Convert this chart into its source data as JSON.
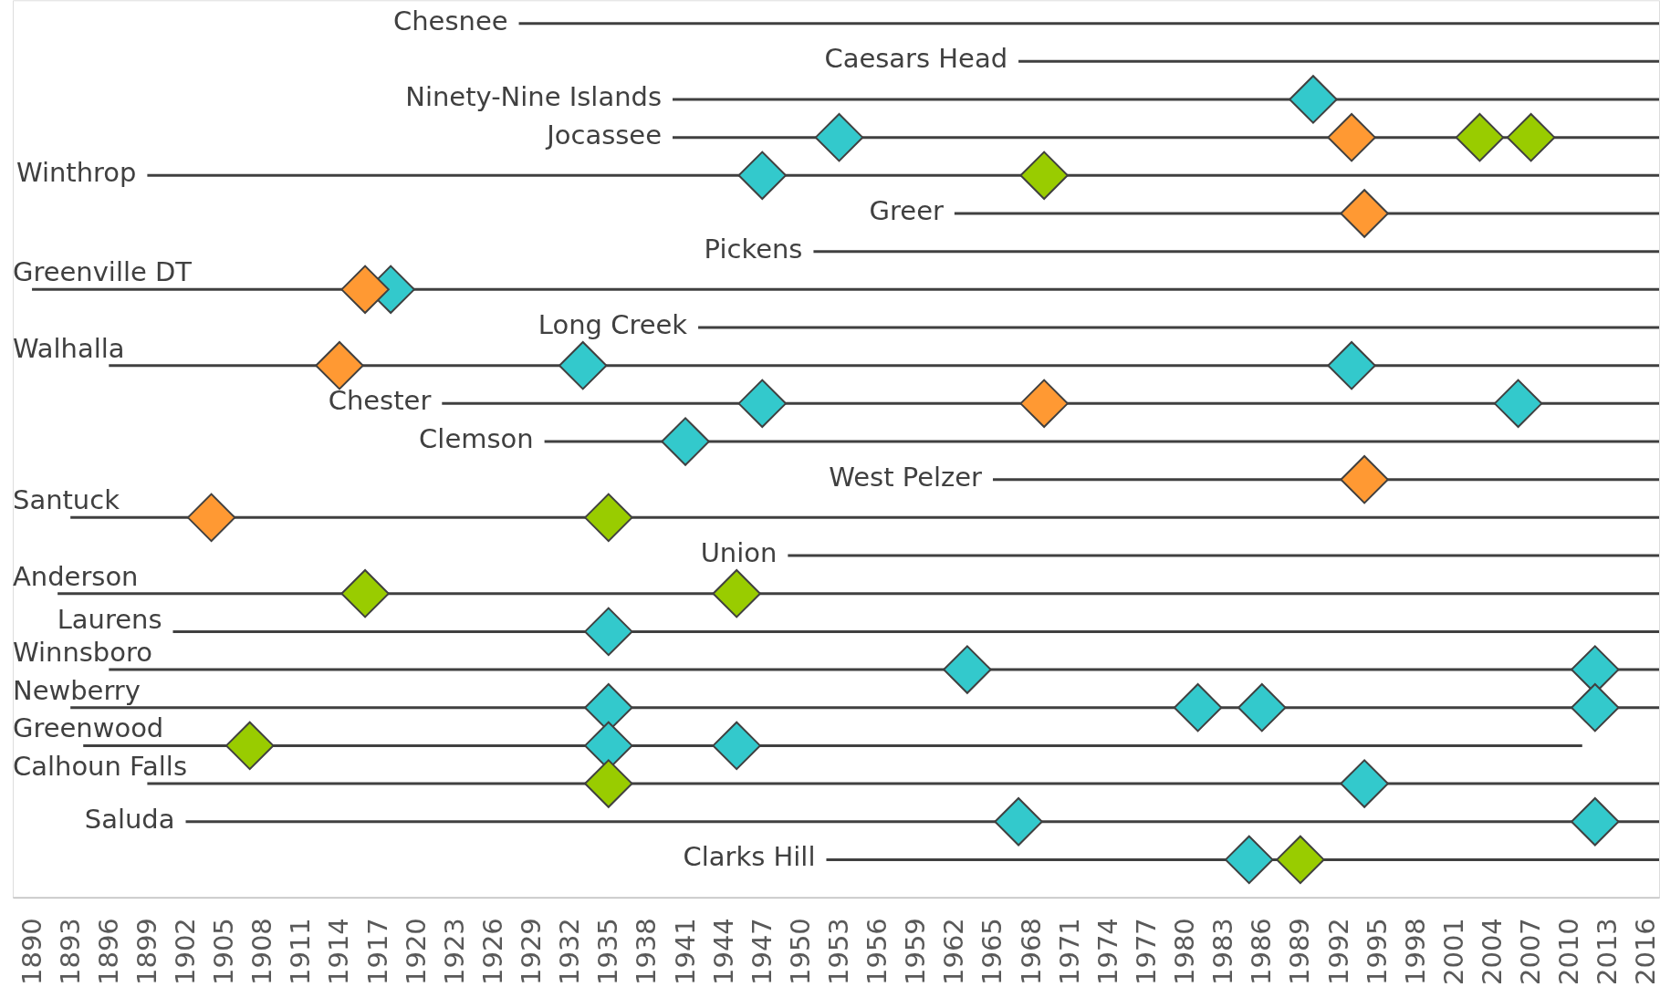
{
  "chart_data": {
    "type": "bar",
    "orientation": "horizontal",
    "marker": "diamond",
    "grid": false,
    "color": "#404040",
    "categories": [
      "Chesnee",
      "Caesars Head",
      "Ninety-Nine Islands",
      "Jocassee",
      "Winthrop",
      "Greer",
      "Pickens",
      "Greenville DT",
      "Long Creek",
      "Walhalla",
      "Chester",
      "Clemson",
      "West Pelzer",
      "Santuck",
      "Union",
      "Anderson",
      "Laurens",
      "Winnsboro",
      "Newberry",
      "Greenwood",
      "Calhoun Falls",
      "Saluda",
      "Clarks Hill"
    ],
    "base": [
      1928,
      1967,
      1940,
      1940,
      1899,
      1962,
      1951,
      1890,
      1942,
      1896,
      1922,
      1930,
      1965,
      1893,
      1949,
      1892,
      1901,
      1896,
      1893,
      1894,
      1899,
      1902,
      1952
    ],
    "values": [
      89,
      50,
      77,
      77,
      118,
      55,
      66,
      127,
      75,
      121,
      95,
      87,
      52,
      124,
      68,
      125,
      116,
      121,
      124,
      117,
      118,
      115,
      65
    ],
    "xlim": [
      1888.5,
      2017
    ],
    "xticks": [
      1890,
      1893,
      1896,
      1899,
      1902,
      1905,
      1908,
      1911,
      1914,
      1917,
      1920,
      1923,
      1926,
      1929,
      1932,
      1935,
      1938,
      1941,
      1944,
      1947,
      1950,
      1953,
      1956,
      1959,
      1962,
      1965,
      1968,
      1971,
      1974,
      1977,
      1980,
      1983,
      1986,
      1989,
      1992,
      1995,
      1998,
      2001,
      2004,
      2007,
      2010,
      2013,
      2016
    ],
    "series": [
      {
        "type": "scatter",
        "color": "#33c9cc",
        "x": [
          "Ninety-Nine Islands",
          "Jocassee",
          "Winthrop",
          "Greenville DT",
          "Walhalla",
          "Walhalla",
          "Chester",
          "Chester",
          "Clemson",
          "Laurens",
          "Winnsboro",
          "Winnsboro",
          "Newberry",
          "Newberry",
          "Newberry",
          "Newberry",
          "Greenwood",
          "Greenwood",
          "Calhoun Falls",
          "Saluda",
          "Saluda",
          "Clarks Hill"
        ],
        "values": [
          1990,
          1953,
          1947,
          1918,
          1933,
          1993,
          1947,
          2006,
          1941,
          1935,
          1963,
          2012,
          1935,
          1981,
          1986,
          2012,
          1935,
          1945,
          1994,
          1967,
          2012,
          1985
        ]
      },
      {
        "type": "scatter",
        "color": "#ff9933",
        "x": [
          "Jocassee",
          "Greer",
          "Greenville DT",
          "Walhalla",
          "Chester",
          "West Pelzer",
          "Santuck"
        ],
        "values": [
          1993,
          1994,
          1916,
          1914,
          1969,
          1994,
          1904
        ]
      },
      {
        "type": "scatter",
        "color": "#99cc00",
        "x": [
          "Jocassee",
          "Jocassee",
          "Winthrop",
          "Santuck",
          "Anderson",
          "Anderson",
          "Greenwood",
          "Calhoun Falls",
          "Clarks Hill"
        ],
        "values": [
          2003,
          2007,
          1969,
          1935,
          1916,
          1945,
          1907,
          1935,
          1989
        ]
      }
    ]
  }
}
